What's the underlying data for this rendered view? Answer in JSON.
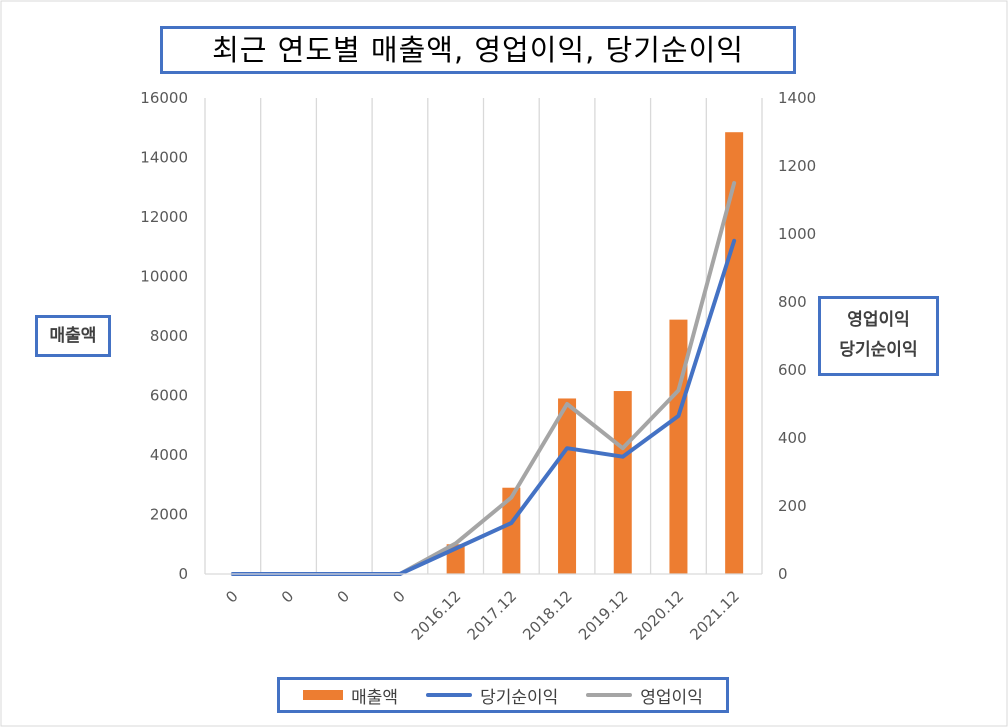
{
  "chart_data": {
    "type": "bar+line",
    "title": "최근 연도별 매출액, 영업이익, 당기순이익",
    "ylabel": "매출액",
    "y2label_line1": "영업이익",
    "y2label_line2": "당기순이익",
    "categories": [
      "0",
      "0",
      "0",
      "0",
      "2016.12",
      "2017.12",
      "2018.12",
      "2019.12",
      "2020.12",
      "2021.12"
    ],
    "ylim": [
      0,
      16000
    ],
    "y2lim": [
      0,
      1400
    ],
    "yticks": [
      "0",
      "2000",
      "4000",
      "6000",
      "8000",
      "10000",
      "12000",
      "14000",
      "16000"
    ],
    "y2ticks": [
      "0",
      "200",
      "400",
      "600",
      "800",
      "1000",
      "1200",
      "1400"
    ],
    "grid": "vertical",
    "legend_position": "bottom",
    "series": [
      {
        "name": "매출액",
        "type": "bar",
        "axis": "left",
        "color": "#ed7d31",
        "values": [
          0,
          0,
          0,
          0,
          1000,
          2900,
          5900,
          6150,
          8550,
          14850
        ]
      },
      {
        "name": "당기순이익",
        "type": "line",
        "axis": "right",
        "color": "#4472c4",
        "values": [
          0,
          0,
          0,
          0,
          75,
          150,
          370,
          345,
          465,
          980
        ]
      },
      {
        "name": "영업이익",
        "type": "line",
        "axis": "right",
        "color": "#a5a5a5",
        "values": [
          0,
          0,
          0,
          0,
          90,
          225,
          500,
          370,
          540,
          1150
        ]
      }
    ]
  }
}
